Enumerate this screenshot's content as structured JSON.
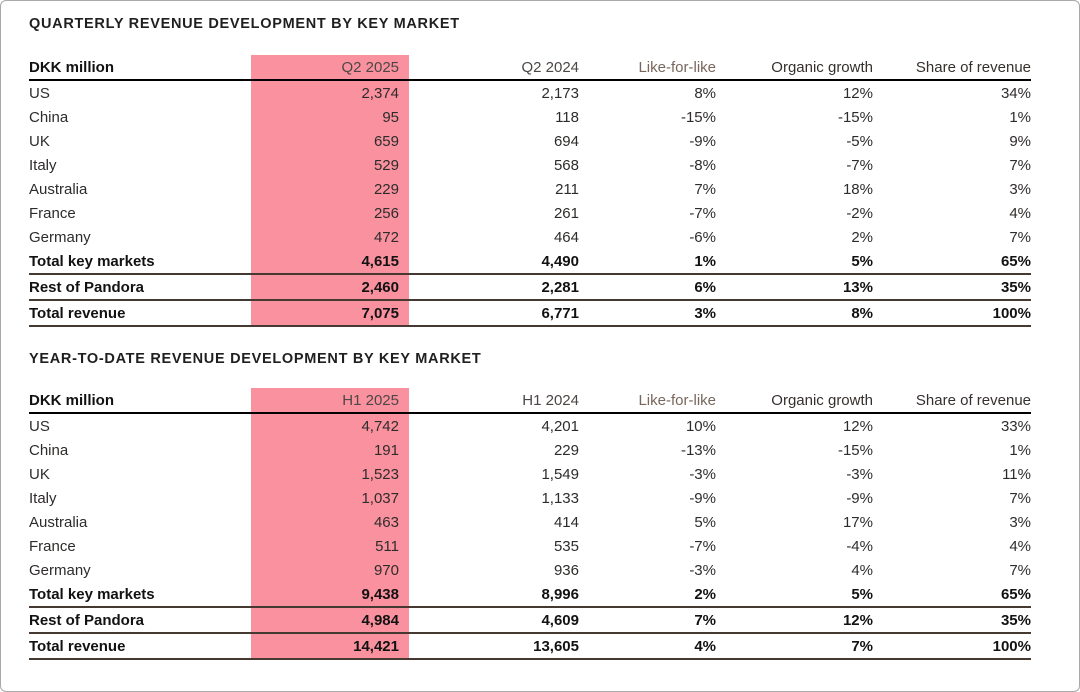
{
  "colors": {
    "highlight_pink": "#FA919F",
    "header_rule": "#000000",
    "total_rule": "#463931",
    "muted_header_text": "#77665B"
  },
  "tables": [
    {
      "title": "QUARTERLY REVENUE DEVELOPMENT BY KEY MARKET",
      "columns": [
        "DKK million",
        "Q2 2025",
        "Q2 2024",
        "Like-for-like",
        "Organic growth",
        "Share of revenue"
      ],
      "highlighted_column": "Q2 2025",
      "rows": [
        {
          "market": "US",
          "current": "2,374",
          "prior": "2,173",
          "lfl": "8%",
          "organic": "12%",
          "share": "34%",
          "bold": false
        },
        {
          "market": "China",
          "current": "95",
          "prior": "118",
          "lfl": "-15%",
          "organic": "-15%",
          "share": "1%",
          "bold": false
        },
        {
          "market": "UK",
          "current": "659",
          "prior": "694",
          "lfl": "-9%",
          "organic": "-5%",
          "share": "9%",
          "bold": false
        },
        {
          "market": "Italy",
          "current": "529",
          "prior": "568",
          "lfl": "-8%",
          "organic": "-7%",
          "share": "7%",
          "bold": false
        },
        {
          "market": "Australia",
          "current": "229",
          "prior": "211",
          "lfl": "7%",
          "organic": "18%",
          "share": "3%",
          "bold": false
        },
        {
          "market": "France",
          "current": "256",
          "prior": "261",
          "lfl": "-7%",
          "organic": "-2%",
          "share": "4%",
          "bold": false
        },
        {
          "market": "Germany",
          "current": "472",
          "prior": "464",
          "lfl": "-6%",
          "organic": "2%",
          "share": "7%",
          "bold": false
        },
        {
          "market": "Total key markets",
          "current": "4,615",
          "prior": "4,490",
          "lfl": "1%",
          "organic": "5%",
          "share": "65%",
          "bold": true
        },
        {
          "market": "Rest of Pandora",
          "current": "2,460",
          "prior": "2,281",
          "lfl": "6%",
          "organic": "13%",
          "share": "35%",
          "bold": true
        },
        {
          "market": "Total revenue",
          "current": "7,075",
          "prior": "6,771",
          "lfl": "3%",
          "organic": "8%",
          "share": "100%",
          "bold": true
        }
      ]
    },
    {
      "title": "YEAR-TO-DATE REVENUE DEVELOPMENT BY KEY MARKET",
      "columns": [
        "DKK million",
        "H1 2025",
        "H1 2024",
        "Like-for-like",
        "Organic growth",
        "Share of revenue"
      ],
      "highlighted_column": "H1 2025",
      "rows": [
        {
          "market": "US",
          "current": "4,742",
          "prior": "4,201",
          "lfl": "10%",
          "organic": "12%",
          "share": "33%",
          "bold": false
        },
        {
          "market": "China",
          "current": "191",
          "prior": "229",
          "lfl": "-13%",
          "organic": "-15%",
          "share": "1%",
          "bold": false
        },
        {
          "market": "UK",
          "current": "1,523",
          "prior": "1,549",
          "lfl": "-3%",
          "organic": "-3%",
          "share": "11%",
          "bold": false
        },
        {
          "market": "Italy",
          "current": "1,037",
          "prior": "1,133",
          "lfl": "-9%",
          "organic": "-9%",
          "share": "7%",
          "bold": false
        },
        {
          "market": "Australia",
          "current": "463",
          "prior": "414",
          "lfl": "5%",
          "organic": "17%",
          "share": "3%",
          "bold": false
        },
        {
          "market": "France",
          "current": "511",
          "prior": "535",
          "lfl": "-7%",
          "organic": "-4%",
          "share": "4%",
          "bold": false
        },
        {
          "market": "Germany",
          "current": "970",
          "prior": "936",
          "lfl": "-3%",
          "organic": "4%",
          "share": "7%",
          "bold": false
        },
        {
          "market": "Total key markets",
          "current": "9,438",
          "prior": "8,996",
          "lfl": "2%",
          "organic": "5%",
          "share": "65%",
          "bold": true
        },
        {
          "market": "Rest of Pandora",
          "current": "4,984",
          "prior": "4,609",
          "lfl": "7%",
          "organic": "12%",
          "share": "35%",
          "bold": true
        },
        {
          "market": "Total revenue",
          "current": "14,421",
          "prior": "13,605",
          "lfl": "4%",
          "organic": "7%",
          "share": "100%",
          "bold": true
        }
      ]
    }
  ]
}
